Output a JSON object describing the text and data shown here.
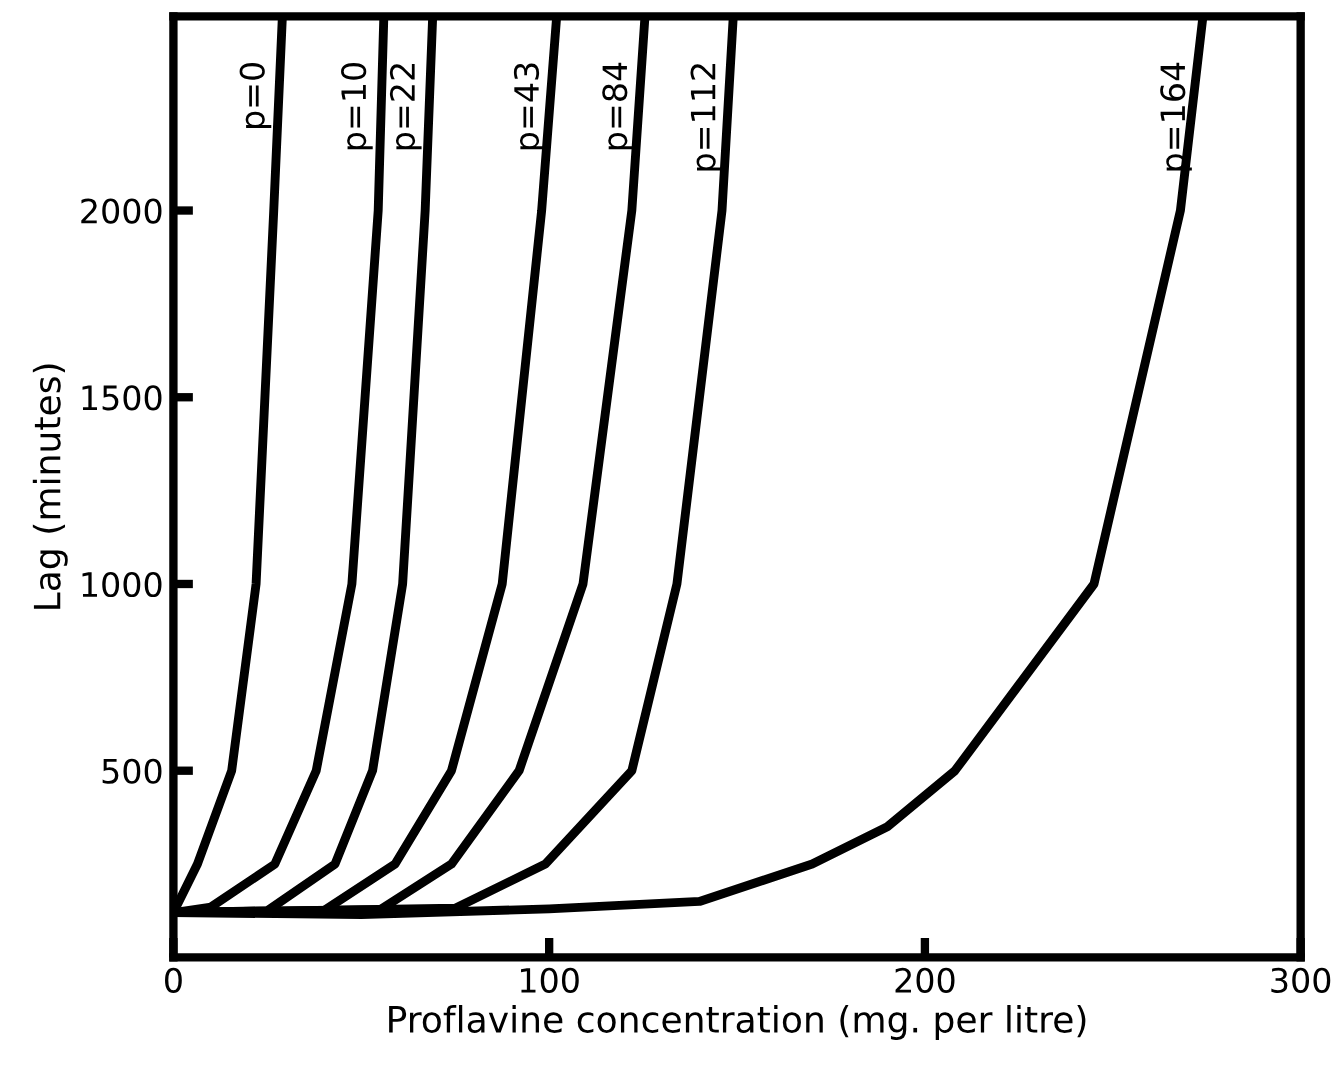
{
  "chart_data": {
    "type": "line",
    "xlabel": "Proflavine concentration (mg. per litre)",
    "ylabel": "Lag (minutes)",
    "xlim": [
      0,
      300
    ],
    "ylim": [
      0,
      2520
    ],
    "xticks": [
      0,
      100,
      200,
      300
    ],
    "yticks": [
      500,
      1000,
      1500,
      2000
    ],
    "grid": false,
    "legend": false,
    "marker": "none",
    "line_style": "solid",
    "series": [
      {
        "name": "p=0",
        "color": "#000000",
        "x": [
          0,
          6.4,
          15.5,
          22,
          26.7,
          29
        ],
        "values": [
          120,
          250,
          500,
          1000,
          2000,
          2520
        ]
      },
      {
        "name": "p=10",
        "color": "#000000",
        "x": [
          0,
          10,
          27,
          38,
          47.5,
          54.5,
          56
        ],
        "values": [
          120,
          135,
          250,
          500,
          1000,
          2000,
          2520
        ]
      },
      {
        "name": "p=22",
        "color": "#000000",
        "x": [
          0,
          25,
          43,
          53,
          61,
          67,
          69
        ],
        "values": [
          120,
          125,
          250,
          500,
          1000,
          2000,
          2520
        ]
      },
      {
        "name": "p=43",
        "color": "#000000",
        "x": [
          0,
          40,
          59,
          74,
          87.5,
          98,
          102
        ],
        "values": [
          120,
          125,
          250,
          500,
          1000,
          2000,
          2520
        ]
      },
      {
        "name": "p=84",
        "color": "#000000",
        "x": [
          0,
          55,
          74,
          92,
          109,
          122,
          125.5
        ],
        "values": [
          120,
          128,
          250,
          500,
          1000,
          2000,
          2520
        ]
      },
      {
        "name": "p=112",
        "color": "#000000",
        "x": [
          0,
          75,
          99,
          122,
          134,
          146,
          149
        ],
        "values": [
          120,
          132,
          250,
          500,
          1000,
          2000,
          2520
        ]
      },
      {
        "name": "p=164",
        "color": "#000000",
        "x": [
          0,
          50,
          100,
          140,
          170,
          190,
          208,
          245,
          268,
          274
        ],
        "values": [
          120,
          115,
          130,
          150,
          250,
          350,
          500,
          1000,
          2000,
          2520
        ]
      }
    ]
  }
}
